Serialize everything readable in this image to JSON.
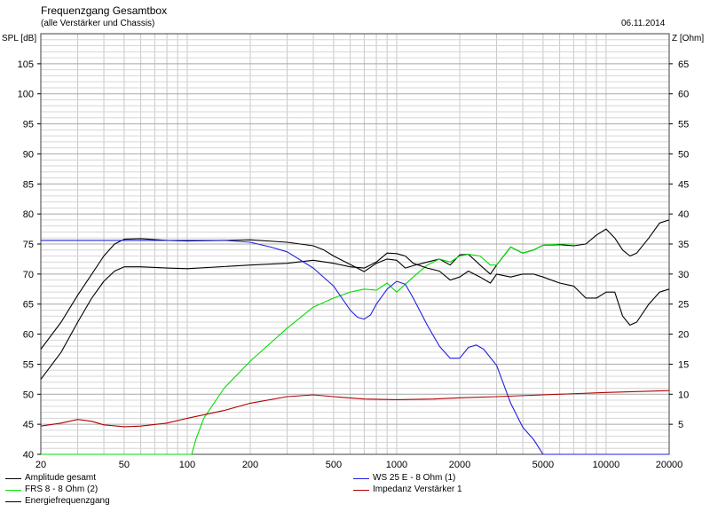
{
  "chart_data": {
    "type": "line",
    "title": "Frequenzgang Gesamtbox",
    "subtitle": "(alle Verstärker und Chassis)",
    "date": "06.11.2014",
    "ylabel_left": "SPL [dB]",
    "ylabel_right": "Z [Ohm]",
    "x_scale": "log",
    "xlim": [
      20,
      20000
    ],
    "ylim_left": [
      40,
      110
    ],
    "ylim_right": [
      0,
      70
    ],
    "x_ticks": [
      20,
      50,
      100,
      200,
      500,
      1000,
      2000,
      5000,
      10000,
      20000
    ],
    "x_tick_labels": [
      "20",
      "50",
      "100",
      "200",
      "500",
      "1000",
      "2000",
      "5000",
      "10000",
      "20000"
    ],
    "y_ticks_left": [
      40,
      45,
      50,
      55,
      60,
      65,
      70,
      75,
      80,
      85,
      90,
      95,
      100,
      105
    ],
    "y_ticks_right": [
      5,
      10,
      15,
      20,
      25,
      30,
      35,
      40,
      45,
      50,
      55,
      60,
      65
    ],
    "grid": true,
    "legend_position": "bottom",
    "series": [
      {
        "name": "Amplitude gesamt",
        "color": "#000000",
        "axis": "left",
        "points": [
          [
            20,
            57.5
          ],
          [
            25,
            62
          ],
          [
            30,
            66.5
          ],
          [
            35,
            70
          ],
          [
            40,
            73
          ],
          [
            45,
            75
          ],
          [
            50,
            75.8
          ],
          [
            60,
            75.9
          ],
          [
            80,
            75.6
          ],
          [
            100,
            75.5
          ],
          [
            150,
            75.6
          ],
          [
            200,
            75.7
          ],
          [
            300,
            75.3
          ],
          [
            400,
            74.7
          ],
          [
            450,
            74
          ],
          [
            500,
            73
          ],
          [
            600,
            71.6
          ],
          [
            700,
            70.4
          ],
          [
            800,
            71.8
          ],
          [
            900,
            72.5
          ],
          [
            1000,
            72.3
          ],
          [
            1100,
            71
          ],
          [
            1200,
            71.4
          ],
          [
            1400,
            72
          ],
          [
            1600,
            72.5
          ],
          [
            1800,
            71.5
          ],
          [
            2000,
            73.2
          ],
          [
            2200,
            73.3
          ],
          [
            2500,
            71.5
          ],
          [
            2800,
            70
          ],
          [
            3000,
            71.5
          ],
          [
            3500,
            74.5
          ],
          [
            4000,
            73.5
          ],
          [
            4500,
            74
          ],
          [
            5000,
            74.8
          ],
          [
            6000,
            74.9
          ],
          [
            7000,
            74.7
          ],
          [
            8000,
            75
          ],
          [
            9000,
            76.5
          ],
          [
            10000,
            77.5
          ],
          [
            11000,
            76
          ],
          [
            12000,
            74
          ],
          [
            13000,
            73
          ],
          [
            14000,
            73.5
          ],
          [
            16000,
            76
          ],
          [
            18000,
            78.5
          ],
          [
            20000,
            79
          ]
        ]
      },
      {
        "name": "FRS 8 - 8 Ohm (2)",
        "color": "#00e000",
        "axis": "left",
        "points": [
          [
            20,
            40
          ],
          [
            100,
            40
          ],
          [
            105,
            40
          ],
          [
            110,
            42.5
          ],
          [
            120,
            46
          ],
          [
            150,
            51
          ],
          [
            200,
            55.5
          ],
          [
            300,
            61
          ],
          [
            400,
            64.5
          ],
          [
            500,
            66
          ],
          [
            600,
            67
          ],
          [
            700,
            67.5
          ],
          [
            800,
            67.3
          ],
          [
            900,
            68.5
          ],
          [
            1000,
            67
          ],
          [
            1200,
            69.5
          ],
          [
            1400,
            71.5
          ],
          [
            1600,
            72.5
          ],
          [
            1800,
            72
          ],
          [
            2000,
            73
          ],
          [
            2200,
            73.3
          ],
          [
            2500,
            73
          ],
          [
            2800,
            71.5
          ],
          [
            3000,
            71.5
          ],
          [
            3500,
            74.5
          ],
          [
            4000,
            73.5
          ],
          [
            4500,
            74
          ],
          [
            5000,
            74.8
          ],
          [
            6000,
            75
          ],
          [
            7000,
            75
          ]
        ]
      },
      {
        "name": "Energiefrequenzgang",
        "color": "#000000",
        "axis": "left",
        "points": [
          [
            20,
            52.5
          ],
          [
            25,
            57
          ],
          [
            30,
            62
          ],
          [
            35,
            66
          ],
          [
            40,
            68.8
          ],
          [
            45,
            70.5
          ],
          [
            50,
            71.2
          ],
          [
            60,
            71.2
          ],
          [
            80,
            71
          ],
          [
            100,
            70.9
          ],
          [
            200,
            71.5
          ],
          [
            300,
            71.8
          ],
          [
            400,
            72.3
          ],
          [
            500,
            71.8
          ],
          [
            600,
            71.2
          ],
          [
            700,
            71
          ],
          [
            800,
            72
          ],
          [
            900,
            73.5
          ],
          [
            1000,
            73.4
          ],
          [
            1100,
            73
          ],
          [
            1200,
            71.8
          ],
          [
            1400,
            71
          ],
          [
            1600,
            70.5
          ],
          [
            1800,
            69
          ],
          [
            2000,
            69.5
          ],
          [
            2200,
            70.5
          ],
          [
            2500,
            69.5
          ],
          [
            2800,
            68.5
          ],
          [
            3000,
            70
          ],
          [
            3500,
            69.5
          ],
          [
            4000,
            70
          ],
          [
            4500,
            70
          ],
          [
            5000,
            69.5
          ],
          [
            6000,
            68.5
          ],
          [
            7000,
            68
          ],
          [
            8000,
            66
          ],
          [
            9000,
            66
          ],
          [
            10000,
            67
          ],
          [
            11000,
            67
          ],
          [
            12000,
            63
          ],
          [
            13000,
            61.5
          ],
          [
            14000,
            62
          ],
          [
            16000,
            65
          ],
          [
            18000,
            67
          ],
          [
            20000,
            67.5
          ]
        ]
      },
      {
        "name": "WS 25 E - 8 Ohm (1)",
        "color": "#2020e0",
        "axis": "left",
        "points": [
          [
            20,
            75.6
          ],
          [
            50,
            75.6
          ],
          [
            100,
            75.6
          ],
          [
            150,
            75.6
          ],
          [
            200,
            75.3
          ],
          [
            250,
            74.5
          ],
          [
            300,
            73.7
          ],
          [
            400,
            71
          ],
          [
            500,
            68
          ],
          [
            600,
            64
          ],
          [
            650,
            62.8
          ],
          [
            700,
            62.5
          ],
          [
            750,
            63.2
          ],
          [
            800,
            65
          ],
          [
            900,
            67.5
          ],
          [
            1000,
            68.8
          ],
          [
            1100,
            68.3
          ],
          [
            1200,
            66
          ],
          [
            1400,
            61.5
          ],
          [
            1600,
            58
          ],
          [
            1800,
            56
          ],
          [
            2000,
            56
          ],
          [
            2200,
            57.8
          ],
          [
            2400,
            58.2
          ],
          [
            2600,
            57.5
          ],
          [
            3000,
            54.8
          ],
          [
            3500,
            48.5
          ],
          [
            4000,
            44.5
          ],
          [
            4500,
            42.5
          ],
          [
            5000,
            40
          ],
          [
            8000,
            40
          ],
          [
            10000,
            40
          ],
          [
            20000,
            40
          ]
        ]
      },
      {
        "name": "Impedanz Verstärker 1",
        "color": "#b00000",
        "axis": "right",
        "points": [
          [
            20,
            4.7
          ],
          [
            25,
            5.2
          ],
          [
            30,
            5.8
          ],
          [
            35,
            5.5
          ],
          [
            40,
            4.9
          ],
          [
            50,
            4.6
          ],
          [
            60,
            4.7
          ],
          [
            80,
            5.2
          ],
          [
            100,
            6
          ],
          [
            150,
            7.3
          ],
          [
            200,
            8.5
          ],
          [
            300,
            9.6
          ],
          [
            400,
            9.9
          ],
          [
            500,
            9.6
          ],
          [
            700,
            9.2
          ],
          [
            1000,
            9.1
          ],
          [
            1500,
            9.2
          ],
          [
            2000,
            9.4
          ],
          [
            3000,
            9.6
          ],
          [
            5000,
            9.9
          ],
          [
            10000,
            10.3
          ],
          [
            20000,
            10.6
          ]
        ]
      }
    ]
  },
  "legend": [
    {
      "label": "Amplitude gesamt",
      "color": "#000000"
    },
    {
      "label": "FRS 8 - 8 Ohm (2)",
      "color": "#00e000"
    },
    {
      "label": "Energiefrequenzgang",
      "color": "#000000"
    },
    {
      "label": "WS 25 E - 8 Ohm (1)",
      "color": "#2020e0"
    },
    {
      "label": "Impedanz Verstärker 1",
      "color": "#b00000"
    }
  ]
}
